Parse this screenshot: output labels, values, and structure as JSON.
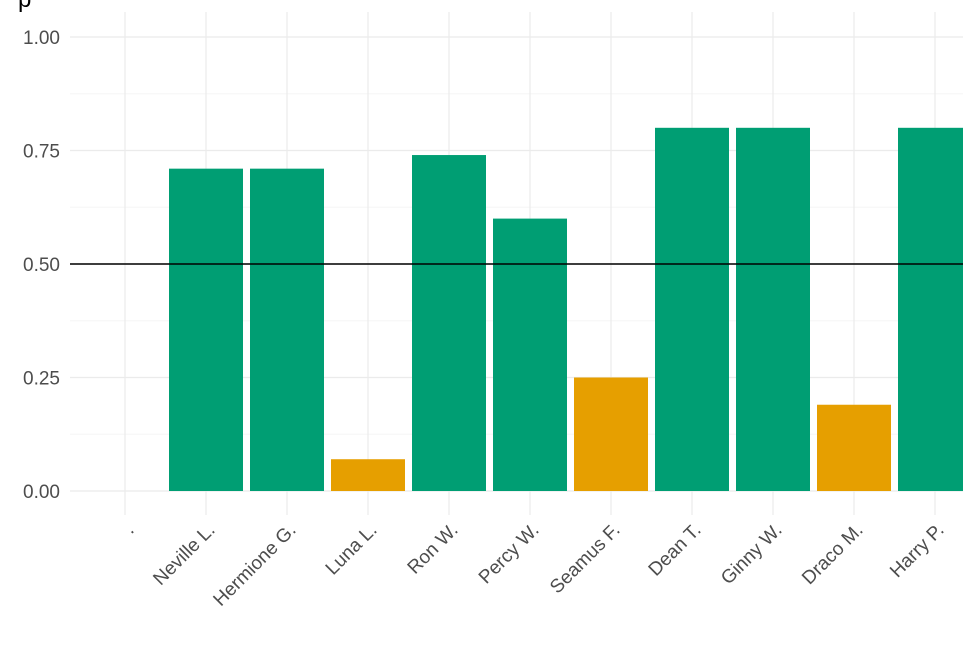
{
  "chart_data": {
    "type": "bar",
    "title": "p",
    "xlabel": "",
    "ylabel": "",
    "categories": [
      ".",
      "Neville L.",
      "Hermione G.",
      "Luna L.",
      "Ron W.",
      "Percy W.",
      "Seamus F.",
      "Dean T.",
      "Ginny W.",
      "Draco M.",
      "Harry P."
    ],
    "values": [
      null,
      0.71,
      0.71,
      0.07,
      0.74,
      0.6,
      0.25,
      0.8,
      0.8,
      0.19,
      0.8
    ],
    "above_threshold": [
      null,
      true,
      true,
      false,
      true,
      true,
      false,
      true,
      true,
      false,
      true
    ],
    "ylim": [
      0,
      1
    ],
    "yticks": [
      0,
      0.25,
      0.5,
      0.75,
      1.0
    ],
    "ytick_labels": [
      "0.00",
      "0.25",
      "0.50",
      "0.75",
      "1.00"
    ],
    "reference_line": 0.5,
    "grid": true,
    "legend": "none",
    "colors": {
      "above": "#009E73",
      "below": "#E69F00",
      "reference": "#000000",
      "grid_major": "#EBEBEB",
      "grid_minor": "#F5F5F5",
      "tick_text": "#4D4D4D"
    }
  }
}
